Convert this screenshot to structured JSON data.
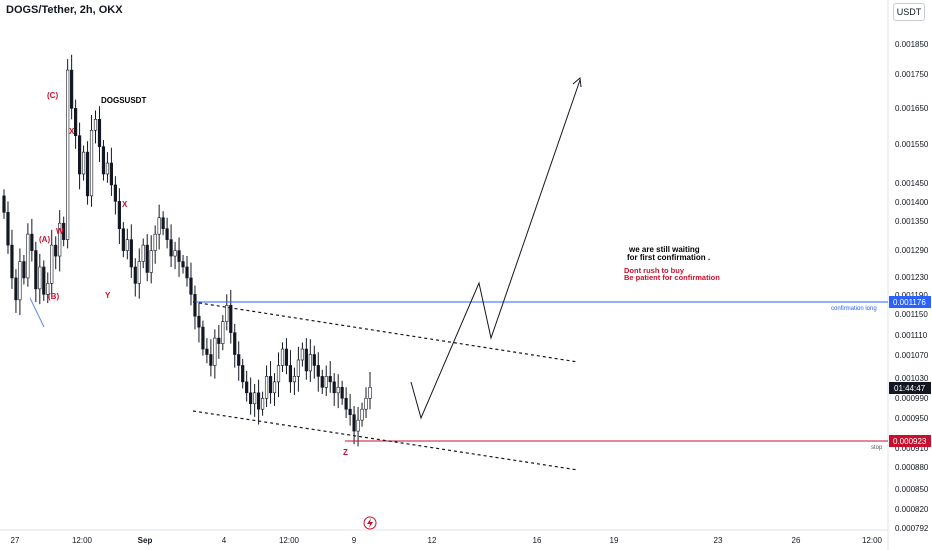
{
  "header": {
    "symbol_title": "DOGS/Tether, 2h, OKX",
    "currency": "USDT"
  },
  "colors": {
    "candle": "#131722",
    "confirmation_line": "#2962ff",
    "stop_line": "#c8102e",
    "wave_label": "#c8102e",
    "price_tag_blue": "#2962ff",
    "price_tag_red": "#c8102e",
    "price_tag_dark": "#131722"
  },
  "annotations": {
    "chart_name": "DOGSUSDT",
    "note_line1": "we are still waiting",
    "note_line2": "for first confirmation .",
    "warn_line1": "Dont rush to buy",
    "warn_line2": "Be patient for confirmation",
    "confirmation_label": "confirmation long",
    "stop_label": "stop",
    "waves": {
      "c": "(C)",
      "x1": "X",
      "w": "W",
      "a": "(A)",
      "b": "(B)",
      "x2": "X",
      "y": "Y",
      "z": "Z"
    }
  },
  "price_tags": {
    "confirmation": "0.001176",
    "current_time": "01:44:47",
    "stop": "0.000923"
  },
  "chart_data": {
    "type": "candlestick",
    "title": "DOGS/Tether, 2h, OKX",
    "ylim": [
      0.00078,
      0.00192
    ],
    "y_ticks": [
      "0.001850",
      "0.001750",
      "0.001650",
      "0.001550",
      "0.001450",
      "0.001400",
      "0.001350",
      "0.001290",
      "0.001230",
      "0.001190",
      "0.001150",
      "0.001110",
      "0.001070",
      "0.001030",
      "0.000990",
      "0.000950",
      "0.000910",
      "0.000880",
      "0.000850",
      "0.000820",
      "0.000792"
    ],
    "x_ticks": [
      "27",
      "12:00",
      "Sep",
      "4",
      "12:00",
      "9",
      "12",
      "16",
      "19",
      "23",
      "26",
      "12:00"
    ],
    "close": [
      0.00134,
      0.00128,
      0.00122,
      0.00118,
      0.00125,
      0.00122,
      0.0013,
      0.00127,
      0.0012,
      0.00124,
      0.00119,
      0.00121,
      0.00128,
      0.00126,
      0.00132,
      0.00129,
      0.0016,
      0.00153,
      0.00148,
      0.00141,
      0.00145,
      0.00137,
      0.00149,
      0.00151,
      0.00146,
      0.00141,
      0.00143,
      0.00139,
      0.00136,
      0.00131,
      0.00127,
      0.00129,
      0.00124,
      0.00121,
      0.00125,
      0.00128,
      0.00123,
      0.00127,
      0.0013,
      0.00133,
      0.00131,
      0.00129,
      0.00126,
      0.00127,
      0.00125,
      0.00124,
      0.00122,
      0.00119,
      0.00115,
      0.00113,
      0.00109,
      0.00108,
      0.00106,
      0.00111,
      0.0011,
      0.00114,
      0.00117,
      0.00112,
      0.00108,
      0.00106,
      0.00103,
      0.00101,
      0.00099,
      0.00101,
      0.00098,
      0.001,
      0.00104,
      0.00101,
      0.00103,
      0.00106,
      0.00109,
      0.00106,
      0.00103,
      0.00104,
      0.00107,
      0.00109,
      0.00105,
      0.00108,
      0.00106,
      0.00104,
      0.00102,
      0.00104,
      0.00103,
      0.00101,
      0.00102,
      0.001,
      0.00098,
      0.00097,
      0.00094,
      0.00096,
      0.00098,
      0.001,
      0.00102
    ],
    "levels": [
      {
        "name": "confirmation long",
        "value": 0.001176
      },
      {
        "name": "stop",
        "value": 0.000923
      }
    ],
    "channel": {
      "upper": [
        [
          0.001176
        ],
        [
          0.00106
        ]
      ],
      "lower": [
        [
          0.00096
        ],
        [
          0.000875
        ]
      ]
    },
    "projection": [
      0.00102,
      0.000955,
      0.001205,
      0.00112,
      0.00174
    ]
  }
}
